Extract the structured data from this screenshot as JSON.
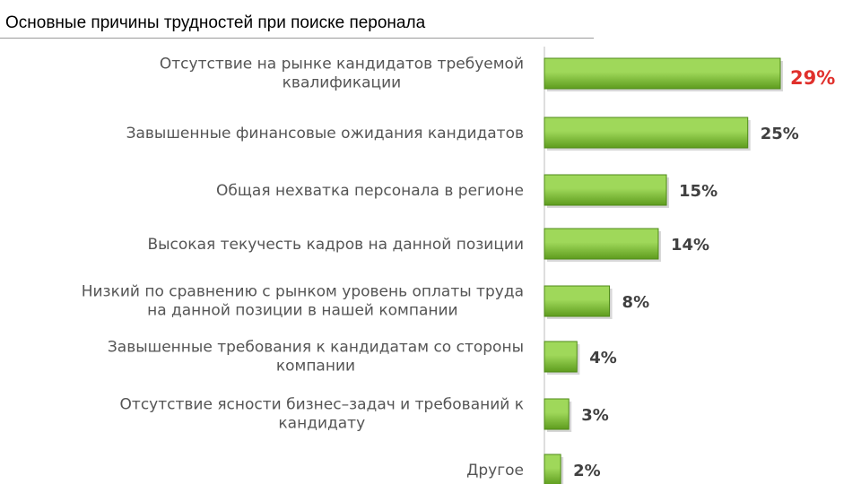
{
  "page": {
    "title": "Основные причины трудностей при поиске перонала"
  },
  "chart_data": {
    "type": "bar",
    "orientation": "horizontal",
    "categories": [
      [
        "Отсутствие на рынке кандидатов требуемой",
        "квалификации"
      ],
      [
        "Завышенные финансовые ожидания кандидатов"
      ],
      [
        "Общая нехватка персонала в регионе"
      ],
      [
        "Высокая текучесть кадров на данной позиции"
      ],
      [
        "Низкий по сравнению с рынком уровень оплаты труда",
        "на данной позиции в нашей компании"
      ],
      [
        "Завышенные требования к кандидатам со стороны",
        "компании"
      ],
      [
        "Отсутствие ясности бизнес–задач и требований к",
        "кандидату"
      ],
      [
        "Другое"
      ]
    ],
    "values": [
      29,
      25,
      15,
      14,
      8,
      4,
      3,
      2
    ],
    "value_labels": [
      "29%",
      "25%",
      "15%",
      "14%",
      "8%",
      "4%",
      "3%",
      "2%"
    ],
    "highlight_index": 0,
    "xlabel": "",
    "ylabel": "",
    "xlim": [
      0,
      29
    ],
    "grid": false,
    "legend": "none",
    "colors": {
      "bar_top": "#9fd85a",
      "bar_bottom": "#5e9c1e",
      "bar_stroke": "#4f8a18",
      "highlight_value": "#e0302c",
      "value_text": "#404040",
      "category_text": "#555555",
      "axis": "#bdbdbd"
    }
  }
}
